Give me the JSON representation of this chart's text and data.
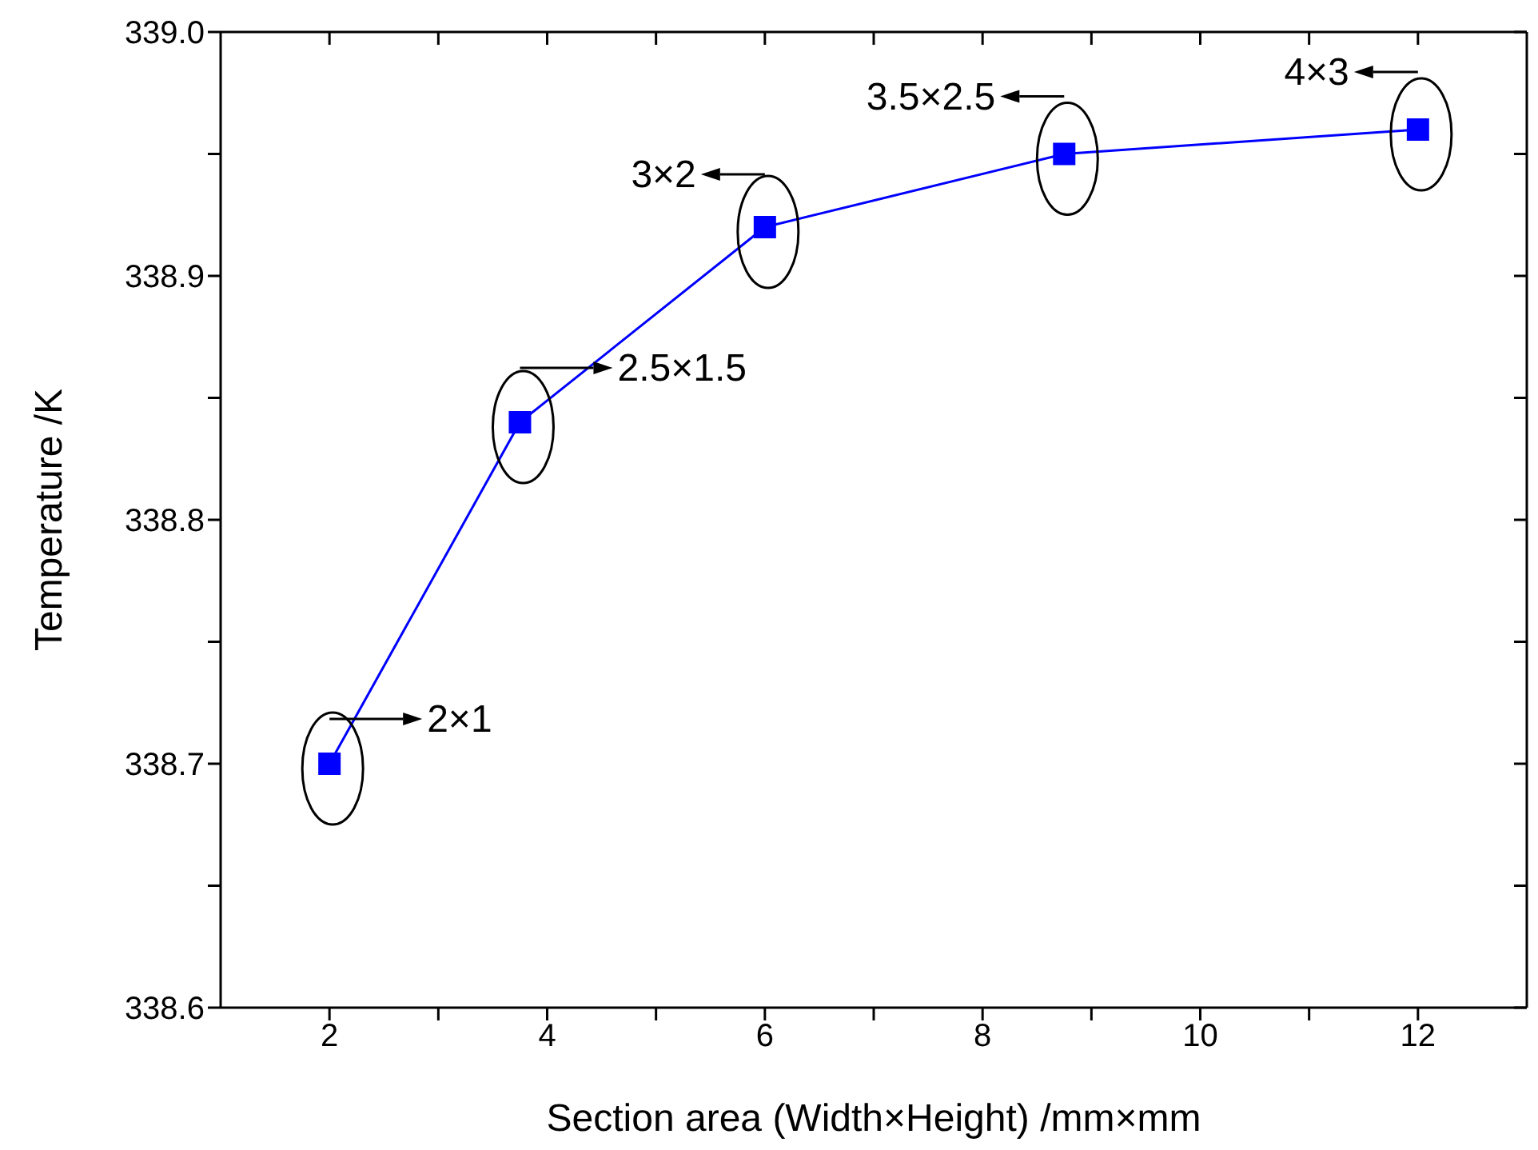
{
  "chart_data": {
    "type": "line",
    "xlabel": "Section area (Width×Height) /mm×mm",
    "ylabel": "Temperature /K",
    "x": [
      2,
      3.75,
      6,
      8.75,
      12
    ],
    "series": [
      {
        "color": "#0000ff",
        "values": [
          338.7,
          338.84,
          338.92,
          338.95,
          338.96
        ]
      }
    ],
    "xlim": [
      1,
      13
    ],
    "xticks": [
      2,
      {
        "value": 3,
        "label": null
      },
      4,
      {
        "value": 5,
        "label": null
      },
      6,
      {
        "value": 7,
        "label": null
      },
      8,
      {
        "value": 9,
        "label": null
      },
      10,
      {
        "value": 11,
        "label": null
      },
      12
    ],
    "ylim": [
      338.6,
      339.0
    ],
    "yticks": [
      {
        "value": 338.6,
        "label": "338.6"
      },
      {
        "value": 338.65,
        "label": null
      },
      {
        "value": 338.7,
        "label": "338.7"
      },
      {
        "value": 338.75,
        "label": null
      },
      {
        "value": 338.8,
        "label": "338.8"
      },
      {
        "value": 338.85,
        "label": null
      },
      {
        "value": 338.9,
        "label": "338.9"
      },
      {
        "value": 338.95,
        "label": null
      },
      {
        "value": 339.0,
        "label": "339.0"
      }
    ],
    "grid": false,
    "legend": false,
    "marker": "square",
    "line_style": "solid",
    "annotations": [
      {
        "text": "2×1",
        "x": 2,
        "y": 338.7
      },
      {
        "text": "2.5×1.5",
        "x": 3.75,
        "y": 338.84
      },
      {
        "text": "3×2",
        "x": 6,
        "y": 338.92
      },
      {
        "text": "3.5×2.5",
        "x": 8.75,
        "y": 338.95
      },
      {
        "text": "4×3",
        "x": 12,
        "y": 338.96
      }
    ]
  }
}
